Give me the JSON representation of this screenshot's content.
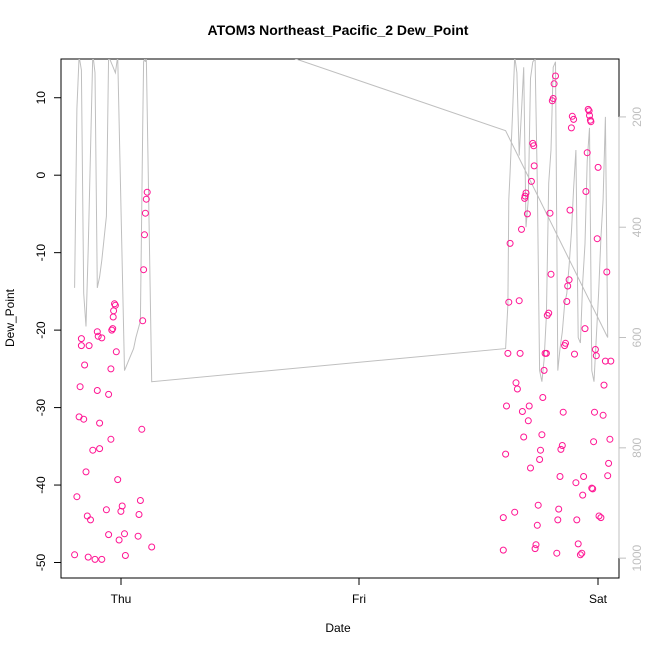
{
  "chart_data": {
    "type": "scatter",
    "title": "ATOM3 Northeast_Pacific_2 Dew_Point",
    "xlabel": "Date",
    "ylabel": "Dew_Point",
    "x_tick_labels": [
      "Thu",
      "Fri",
      "Sat"
    ],
    "xlim": [
      -0.2,
      1.03
    ],
    "ylim": [
      -52,
      15
    ],
    "y_ticks": [
      -50,
      -40,
      -30,
      -20,
      -10,
      0,
      10
    ],
    "y2_ticks": [
      200,
      400,
      600,
      800,
      1000
    ],
    "y2lim": [
      1036,
      95
    ],
    "colors": {
      "points": "#ff1493",
      "pressure_line": "#bfbfbf",
      "axis": "#000000",
      "axis2": "#bfbfbf"
    },
    "series": [
      {
        "marker": "open-circle",
        "axis": "left",
        "points": [
          [
            -0.17,
            -49
          ],
          [
            -0.165,
            -41.5
          ],
          [
            -0.16,
            -31.2
          ],
          [
            -0.158,
            -27.3
          ],
          [
            -0.155,
            -22
          ],
          [
            -0.155,
            -21.1
          ],
          [
            -0.15,
            -31.5
          ],
          [
            -0.148,
            -24.5
          ],
          [
            -0.145,
            -38.3
          ],
          [
            -0.142,
            -44
          ],
          [
            -0.14,
            -49.3
          ],
          [
            -0.138,
            -22
          ],
          [
            -0.135,
            -44.5
          ],
          [
            -0.13,
            -35.5
          ],
          [
            -0.125,
            -49.6
          ],
          [
            -0.12,
            -27.8
          ],
          [
            -0.12,
            -20.2
          ],
          [
            -0.118,
            -20.8
          ],
          [
            -0.115,
            -35.3
          ],
          [
            -0.115,
            -32
          ],
          [
            -0.11,
            -49.6
          ],
          [
            -0.11,
            -21
          ],
          [
            -0.1,
            -43.2
          ],
          [
            -0.095,
            -46.4
          ],
          [
            -0.095,
            -28.3
          ],
          [
            -0.09,
            -34.1
          ],
          [
            -0.09,
            -25
          ],
          [
            -0.088,
            -20
          ],
          [
            -0.086,
            -19.8
          ],
          [
            -0.085,
            -18.3
          ],
          [
            -0.084,
            -17.5
          ],
          [
            -0.082,
            -16.6
          ],
          [
            -0.08,
            -16.8
          ],
          [
            -0.078,
            -22.8
          ],
          [
            -0.075,
            -39.3
          ],
          [
            -0.072,
            -47.1
          ],
          [
            -0.068,
            -43.4
          ],
          [
            -0.065,
            -42.7
          ],
          [
            -0.06,
            -46.3
          ],
          [
            -0.058,
            -49.1
          ],
          [
            -0.03,
            -46.6
          ],
          [
            -0.028,
            -43.8
          ],
          [
            -0.025,
            -42
          ],
          [
            -0.022,
            -32.8
          ],
          [
            -0.02,
            -18.8
          ],
          [
            -0.018,
            -12.2
          ],
          [
            -0.016,
            -7.7
          ],
          [
            -0.014,
            -4.9
          ],
          [
            -0.012,
            -3.1
          ],
          [
            -0.01,
            -2.2
          ],
          [
            0.0,
            -48
          ],
          [
            0.775,
            -48.4
          ],
          [
            0.775,
            -44.2
          ],
          [
            0.78,
            -36
          ],
          [
            0.782,
            -29.8
          ],
          [
            0.785,
            -23
          ],
          [
            0.787,
            -16.4
          ],
          [
            0.79,
            -8.8
          ],
          [
            0.8,
            -43.5
          ],
          [
            0.803,
            -26.8
          ],
          [
            0.806,
            -27.6
          ],
          [
            0.81,
            -16.2
          ],
          [
            0.812,
            -23
          ],
          [
            0.815,
            -7
          ],
          [
            0.817,
            -30.5
          ],
          [
            0.82,
            -33.8
          ],
          [
            0.822,
            -3
          ],
          [
            0.823,
            -2.7
          ],
          [
            0.825,
            -2.3
          ],
          [
            0.828,
            -5
          ],
          [
            0.83,
            -31.7
          ],
          [
            0.832,
            -29.8
          ],
          [
            0.835,
            -37.8
          ],
          [
            0.837,
            -0.8
          ],
          [
            0.84,
            4.1
          ],
          [
            0.842,
            3.8
          ],
          [
            0.843,
            1.2
          ],
          [
            0.845,
            -48.2
          ],
          [
            0.847,
            -47.7
          ],
          [
            0.85,
            -45.2
          ],
          [
            0.852,
            -42.6
          ],
          [
            0.855,
            -36.7
          ],
          [
            0.857,
            -35.5
          ],
          [
            0.86,
            -33.5
          ],
          [
            0.862,
            -28.7
          ],
          [
            0.865,
            -25.2
          ],
          [
            0.867,
            -23
          ],
          [
            0.87,
            -23
          ],
          [
            0.872,
            -18.1
          ],
          [
            0.875,
            -17.8
          ],
          [
            0.878,
            -4.9
          ],
          [
            0.88,
            -12.8
          ],
          [
            0.883,
            9.6
          ],
          [
            0.885,
            9.9
          ],
          [
            0.887,
            11.8
          ],
          [
            0.89,
            12.8
          ],
          [
            0.893,
            -48.8
          ],
          [
            0.895,
            -44.5
          ],
          [
            0.897,
            -43.1
          ],
          [
            0.9,
            -38.9
          ],
          [
            0.902,
            -35.4
          ],
          [
            0.905,
            -34.9
          ],
          [
            0.907,
            -30.6
          ],
          [
            0.91,
            -22
          ],
          [
            0.912,
            -21.7
          ],
          [
            0.915,
            -16.3
          ],
          [
            0.917,
            -14.3
          ],
          [
            0.92,
            -13.5
          ],
          [
            0.922,
            -4.5
          ],
          [
            0.925,
            6.1
          ],
          [
            0.927,
            7.6
          ],
          [
            0.93,
            7.2
          ],
          [
            0.932,
            -23.1
          ],
          [
            0.935,
            -39.7
          ],
          [
            0.937,
            -44.5
          ],
          [
            0.94,
            -47.6
          ],
          [
            0.945,
            -49
          ],
          [
            0.948,
            -48.8
          ],
          [
            0.95,
            -41.3
          ],
          [
            0.952,
            -38.9
          ],
          [
            0.955,
            -19.8
          ],
          [
            0.957,
            -2.1
          ],
          [
            0.96,
            2.9
          ],
          [
            0.962,
            8.5
          ],
          [
            0.964,
            8.3
          ],
          [
            0.965,
            7.7
          ],
          [
            0.967,
            7.1
          ],
          [
            0.968,
            6.9
          ],
          [
            0.97,
            -40.4
          ],
          [
            0.972,
            -40.5
          ],
          [
            0.974,
            -34.4
          ],
          [
            0.976,
            -30.6
          ],
          [
            0.978,
            -22.5
          ],
          [
            0.98,
            -23.3
          ],
          [
            0.982,
            -8.2
          ],
          [
            0.984,
            1
          ],
          [
            0.986,
            -44
          ],
          [
            0.99,
            -44.2
          ],
          [
            0.995,
            -31
          ],
          [
            0.997,
            -27.1
          ],
          [
            1.0,
            -24
          ],
          [
            1.003,
            -12.5
          ],
          [
            1.005,
            -38.8
          ],
          [
            1.007,
            -37.2
          ],
          [
            1.01,
            -34.1
          ],
          [
            1.012,
            -24
          ]
        ]
      },
      {
        "marker": "line",
        "axis": "right",
        "points": [
          [
            -0.17,
            510
          ],
          [
            -0.165,
            185
          ],
          [
            -0.16,
            90
          ],
          [
            -0.155,
            115
          ],
          [
            -0.15,
            520
          ],
          [
            -0.145,
            580
          ],
          [
            -0.14,
            440
          ],
          [
            -0.13,
            85
          ],
          [
            -0.125,
            120
          ],
          [
            -0.12,
            510
          ],
          [
            -0.115,
            490
          ],
          [
            -0.11,
            460
          ],
          [
            -0.105,
            420
          ],
          [
            -0.1,
            380
          ],
          [
            -0.095,
            90
          ],
          [
            -0.09,
            100
          ],
          [
            -0.085,
            110
          ],
          [
            -0.08,
            120
          ],
          [
            -0.075,
            90
          ],
          [
            -0.06,
            660
          ],
          [
            -0.05,
            640
          ],
          [
            -0.04,
            620
          ],
          [
            -0.035,
            600
          ],
          [
            -0.025,
            570
          ],
          [
            -0.02,
            220
          ],
          [
            -0.018,
            100
          ],
          [
            -0.016,
            95
          ],
          [
            -0.014,
            100
          ],
          [
            -0.012,
            90
          ],
          [
            0.0,
            680
          ],
          [
            0.78,
            620
          ],
          [
            0.785,
            540
          ],
          [
            0.787,
            350
          ],
          [
            0.79,
            300
          ],
          [
            0.795,
            200
          ],
          [
            0.8,
            90
          ],
          [
            0.805,
            120
          ],
          [
            0.81,
            270
          ],
          [
            0.815,
            190
          ],
          [
            0.82,
            110
          ],
          [
            0.825,
            400
          ],
          [
            0.83,
            350
          ],
          [
            0.835,
            130
          ],
          [
            0.84,
            100
          ],
          [
            0.845,
            95
          ],
          [
            0.85,
            320
          ],
          [
            0.855,
            660
          ],
          [
            0.86,
            680
          ],
          [
            0.865,
            640
          ],
          [
            0.87,
            560
          ],
          [
            0.875,
            320
          ],
          [
            0.88,
            260
          ],
          [
            0.885,
            110
          ],
          [
            0.89,
            100
          ],
          [
            0.895,
            660
          ],
          [
            0.9,
            620
          ],
          [
            0.905,
            590
          ],
          [
            0.91,
            540
          ],
          [
            0.915,
            520
          ],
          [
            0.92,
            470
          ],
          [
            0.925,
            410
          ],
          [
            0.93,
            330
          ],
          [
            0.935,
            260
          ],
          [
            0.94,
            600
          ],
          [
            0.945,
            610
          ],
          [
            0.95,
            500
          ],
          [
            0.955,
            430
          ],
          [
            0.96,
            280
          ],
          [
            0.965,
            220
          ],
          [
            0.97,
            660
          ],
          [
            0.975,
            680
          ],
          [
            0.98,
            600
          ],
          [
            0.985,
            520
          ],
          [
            0.99,
            420
          ],
          [
            0.995,
            350
          ],
          [
            1.0,
            200
          ],
          [
            1.005,
            600
          ],
          [
            0.78,
            225
          ],
          [
            0.3,
            90
          ],
          [
            0.0,
            90
          ]
        ]
      }
    ]
  }
}
